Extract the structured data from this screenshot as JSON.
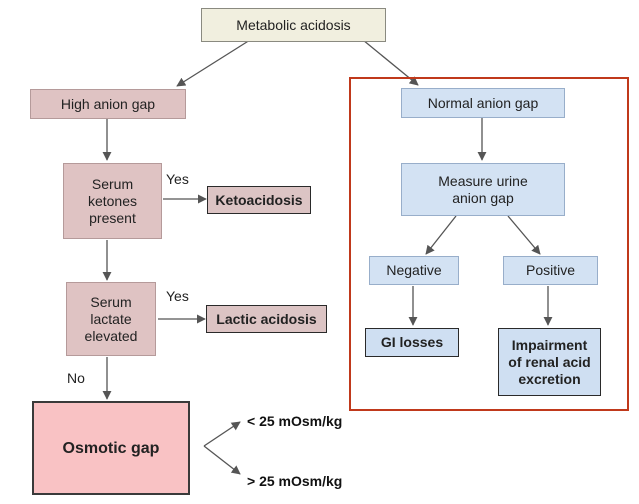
{
  "diagram": {
    "root": "Metabolic acidosis",
    "high_gap": "High anion gap",
    "serum_ketones": "Serum\nketones\npresent",
    "ketones_yes": "Yes",
    "ketoacidosis": "Ketoacidosis",
    "serum_lactate": "Serum\nlactate\nelevated",
    "lactate_yes": "Yes",
    "lactic_acidosis": "Lactic acidosis",
    "lactate_no": "No",
    "osmotic_gap": "Osmotic gap",
    "osm_low": "< 25 mOsm/kg",
    "osm_high": "> 25 mOsm/kg",
    "normal_gap": "Normal anion gap",
    "measure_urine": "Measure urine\nanion gap",
    "negative": "Negative",
    "positive": "Positive",
    "gi_losses": "GI losses",
    "impairment": "Impairment\nof renal acid\nexcretion"
  },
  "colors": {
    "cream": "#f1efdf",
    "pink": "#dfc3c3",
    "blue": "#d3e2f3",
    "osmotic": "#f9c2c4",
    "frame": "#c0391b"
  }
}
